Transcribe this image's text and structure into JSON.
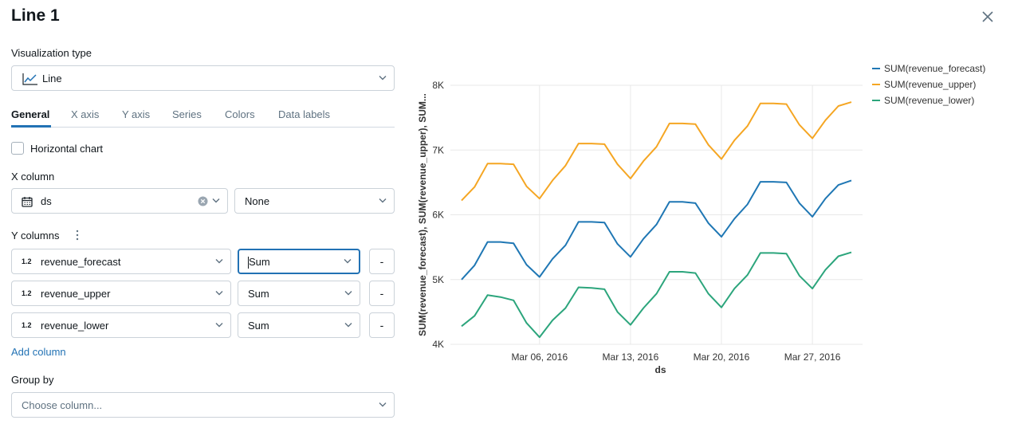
{
  "header": {
    "title": "Line 1"
  },
  "viz_type": {
    "label": "Visualization type",
    "value": "Line"
  },
  "tabs": [
    "General",
    "X axis",
    "Y axis",
    "Series",
    "Colors",
    "Data labels"
  ],
  "horizontal_chart": {
    "label": "Horizontal chart",
    "checked": false
  },
  "x_column": {
    "label": "X column",
    "value": "ds",
    "scale": "None"
  },
  "y_columns": {
    "label": "Y columns",
    "rows": [
      {
        "type_badge": "1.2",
        "column": "revenue_forecast",
        "agg": "Sum"
      },
      {
        "type_badge": "1.2",
        "column": "revenue_upper",
        "agg": "Sum"
      },
      {
        "type_badge": "1.2",
        "column": "revenue_lower",
        "agg": "Sum"
      }
    ],
    "remove_label": "-",
    "add_label": "Add column"
  },
  "group_by": {
    "label": "Group by",
    "placeholder": "Choose column..."
  },
  "chart_data": {
    "type": "line",
    "x_dates": [
      "Feb 29, 2016",
      "Mar 01, 2016",
      "Mar 02, 2016",
      "Mar 03, 2016",
      "Mar 04, 2016",
      "Mar 05, 2016",
      "Mar 06, 2016",
      "Mar 07, 2016",
      "Mar 08, 2016",
      "Mar 09, 2016",
      "Mar 10, 2016",
      "Mar 11, 2016",
      "Mar 12, 2016",
      "Mar 13, 2016",
      "Mar 14, 2016",
      "Mar 15, 2016",
      "Mar 16, 2016",
      "Mar 17, 2016",
      "Mar 18, 2016",
      "Mar 19, 2016",
      "Mar 20, 2016",
      "Mar 21, 2016",
      "Mar 22, 2016",
      "Mar 23, 2016",
      "Mar 24, 2016",
      "Mar 25, 2016",
      "Mar 26, 2016",
      "Mar 27, 2016",
      "Mar 28, 2016",
      "Mar 29, 2016",
      "Mar 30, 2016"
    ],
    "xlabel": "ds",
    "ylabel": "SUM(revenue_forecast), SUM(revenue_upper), SUM...",
    "ylim": [
      4000,
      8000
    ],
    "y_ticks": [
      "4K",
      "5K",
      "6K",
      "7K",
      "8K"
    ],
    "x_ticks": [
      {
        "label": "Mar 06, 2016",
        "index": 6
      },
      {
        "label": "Mar 13, 2016",
        "index": 13
      },
      {
        "label": "Mar 20, 2016",
        "index": 20
      },
      {
        "label": "Mar 27, 2016",
        "index": 27
      }
    ],
    "grid": true,
    "legend_position": "top-right",
    "series": [
      {
        "name": "SUM(revenue_forecast)",
        "color": "#1f77b4",
        "values": [
          5000,
          5220,
          5580,
          5580,
          5560,
          5230,
          5040,
          5320,
          5530,
          5890,
          5890,
          5880,
          5550,
          5350,
          5630,
          5850,
          6200,
          6200,
          6180,
          5870,
          5660,
          5940,
          6160,
          6510,
          6510,
          6500,
          6180,
          5970,
          6250,
          6460,
          6530
        ]
      },
      {
        "name": "SUM(revenue_upper)",
        "color": "#f5a623",
        "values": [
          6220,
          6430,
          6790,
          6790,
          6780,
          6440,
          6250,
          6530,
          6760,
          7100,
          7100,
          7090,
          6780,
          6560,
          6830,
          7050,
          7410,
          7410,
          7400,
          7080,
          6860,
          7150,
          7370,
          7720,
          7720,
          7710,
          7390,
          7180,
          7460,
          7680,
          7740
        ]
      },
      {
        "name": "SUM(revenue_lower)",
        "color": "#2ca57c",
        "values": [
          4280,
          4440,
          4760,
          4730,
          4680,
          4330,
          4110,
          4370,
          4560,
          4880,
          4870,
          4850,
          4500,
          4300,
          4560,
          4780,
          5120,
          5120,
          5100,
          4780,
          4570,
          4860,
          5070,
          5410,
          5410,
          5400,
          5060,
          4860,
          5150,
          5360,
          5420
        ]
      }
    ]
  }
}
